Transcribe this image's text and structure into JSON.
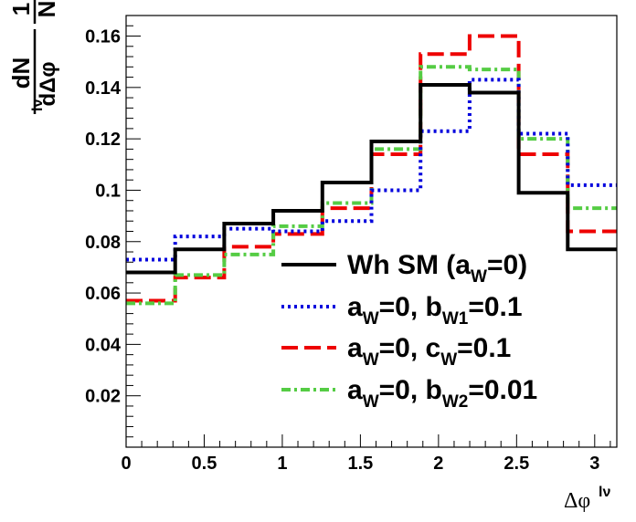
{
  "chart_data": {
    "type": "line",
    "style": "step-histogram",
    "xlabel": "Δφ",
    "xlabel_sup": "lν",
    "ylabel": {
      "numerator": "1",
      "denominator": "N",
      "frac_num": "dN",
      "frac_den": "dΔφ",
      "frac_den_sup": "lν"
    },
    "xlim": [
      0,
      3.1416
    ],
    "ylim": [
      0,
      0.168
    ],
    "x_ticks": [
      0,
      0.5,
      1,
      1.5,
      2,
      2.5,
      3
    ],
    "x_tick_labels": [
      "0",
      "0.5",
      "1",
      "1.5",
      "2",
      "2.5",
      "3"
    ],
    "y_ticks": [
      0.02,
      0.04,
      0.06,
      0.08,
      0.1,
      0.12,
      0.14,
      0.16
    ],
    "y_tick_labels": [
      "0.02",
      "0.04",
      "0.06",
      "0.08",
      "0.1",
      "0.12",
      "0.14",
      "0.16"
    ],
    "bin_edges": [
      0,
      0.3142,
      0.6283,
      0.9425,
      1.2566,
      1.5708,
      1.885,
      2.1991,
      2.5133,
      2.8274,
      3.1416
    ],
    "series": [
      {
        "name": "Wh SM",
        "color": "#000000",
        "dash": "solid",
        "values": [
          0.068,
          0.077,
          0.087,
          0.092,
          0.103,
          0.119,
          0.141,
          0.138,
          0.099,
          0.077
        ]
      },
      {
        "name": "aW=0, bW1=0.1",
        "color": "#0000dd",
        "dash": "dot",
        "values": [
          0.073,
          0.082,
          0.085,
          0.084,
          0.088,
          0.1,
          0.123,
          0.143,
          0.122,
          0.102
        ]
      },
      {
        "name": "aW=0, cW=0.1",
        "color": "#ee0000",
        "dash": "dash",
        "values": [
          0.057,
          0.066,
          0.078,
          0.083,
          0.093,
          0.114,
          0.153,
          0.16,
          0.114,
          0.084
        ]
      },
      {
        "name": "aW=0, bW2=0.01",
        "color": "#55cc44",
        "dash": "dashdot",
        "values": [
          0.056,
          0.067,
          0.075,
          0.086,
          0.095,
          0.116,
          0.148,
          0.147,
          0.12,
          0.093
        ]
      }
    ],
    "legend": {
      "placement": "bottom-right",
      "entries": [
        {
          "parts": [
            {
              "t": "Wh SM (a"
            },
            {
              "t": "W",
              "sub": true
            },
            {
              "t": "=0)"
            }
          ]
        },
        {
          "parts": [
            {
              "t": "a"
            },
            {
              "t": "W",
              "sub": true
            },
            {
              "t": "=0, b"
            },
            {
              "t": "W1",
              "sub": true
            },
            {
              "t": "=0.1"
            }
          ]
        },
        {
          "parts": [
            {
              "t": "a"
            },
            {
              "t": "W",
              "sub": true
            },
            {
              "t": "=0, c"
            },
            {
              "t": "W",
              "sub": true
            },
            {
              "t": "=0.1"
            }
          ]
        },
        {
          "parts": [
            {
              "t": "a"
            },
            {
              "t": "W",
              "sub": true
            },
            {
              "t": "=0, b"
            },
            {
              "t": "W2",
              "sub": true
            },
            {
              "t": "=0.01"
            }
          ]
        }
      ]
    }
  }
}
